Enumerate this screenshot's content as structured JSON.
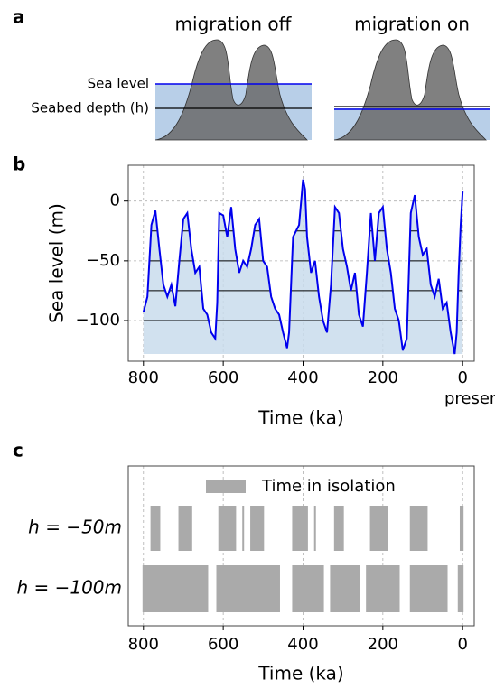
{
  "panel_labels": [
    "a",
    "b",
    "c"
  ],
  "panel_a": {
    "titles": [
      "migration off",
      "migration on"
    ],
    "labels": [
      "Sea level",
      "Seabed depth (h)"
    ]
  },
  "chart_data": [
    {
      "type": "line",
      "ylabel": "Sea level (m)",
      "xlabel": "Time (ka)",
      "x_annotation": "present",
      "xlim": [
        838,
        -29
      ],
      "ylim": [
        -134,
        30
      ],
      "xticks": [
        800,
        600,
        400,
        200,
        0
      ],
      "yticks": [
        0,
        {
          "value": -50,
          "label": "−50"
        },
        {
          "value": -100,
          "label": "−100"
        }
      ],
      "grid": true,
      "levels": [
        -25,
        -50,
        -75,
        -100
      ],
      "fill_color": "#c9dcec",
      "series": [
        {
          "color": "#0000ee",
          "x": [
            800,
            790,
            780,
            770,
            760,
            750,
            740,
            730,
            720,
            710,
            700,
            690,
            680,
            670,
            660,
            650,
            640,
            630,
            620,
            615,
            610,
            600,
            590,
            580,
            570,
            560,
            550,
            540,
            530,
            520,
            510,
            500,
            490,
            480,
            470,
            460,
            450,
            440,
            435,
            425,
            410,
            400,
            395,
            390,
            380,
            370,
            360,
            350,
            340,
            330,
            320,
            310,
            300,
            290,
            280,
            270,
            260,
            250,
            240,
            230,
            220,
            210,
            200,
            190,
            180,
            170,
            160,
            150,
            140,
            130,
            120,
            110,
            100,
            90,
            80,
            70,
            60,
            50,
            40,
            30,
            20,
            15,
            10,
            5,
            0
          ],
          "values": [
            -93,
            -80,
            -20,
            -8,
            -40,
            -70,
            -80,
            -70,
            -88,
            -50,
            -15,
            -10,
            -40,
            -60,
            -55,
            -90,
            -95,
            -110,
            -115,
            -85,
            -10,
            -12,
            -30,
            -5,
            -40,
            -60,
            -50,
            -55,
            -40,
            -20,
            -15,
            -50,
            -55,
            -80,
            -90,
            -95,
            -110,
            -123,
            -110,
            -30,
            -20,
            18,
            10,
            -30,
            -60,
            -50,
            -80,
            -100,
            -110,
            -70,
            -5,
            -10,
            -40,
            -55,
            -75,
            -60,
            -95,
            -105,
            -60,
            -10,
            -50,
            -10,
            -5,
            -40,
            -60,
            -90,
            -100,
            -125,
            -115,
            -10,
            5,
            -30,
            -45,
            -40,
            -70,
            -80,
            -65,
            -90,
            -85,
            -110,
            -128,
            -110,
            -60,
            -20,
            8
          ]
        }
      ]
    },
    {
      "type": "interval",
      "xlabel": "Time (ka)",
      "xlim": [
        838,
        -29
      ],
      "xticks": [
        800,
        600,
        400,
        200,
        0
      ],
      "grid": true,
      "legend": "Time in isolation",
      "color": "#aaaaaa",
      "rows": [
        {
          "label": "h = −50m",
          "h": -50
        },
        {
          "label": "h = −100m",
          "h": -100
        }
      ]
    }
  ]
}
